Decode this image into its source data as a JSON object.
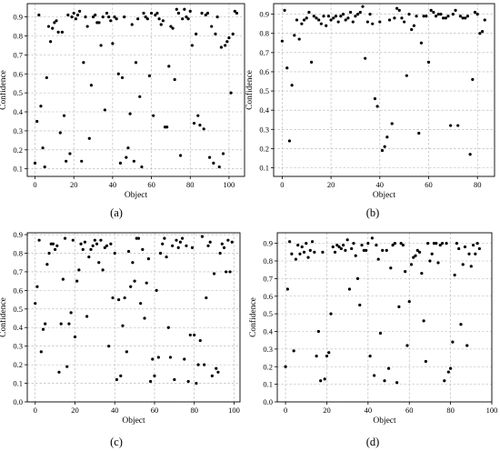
{
  "panels": [
    {
      "caption": "(a)"
    },
    {
      "caption": "(b)"
    },
    {
      "caption": "(c)"
    },
    {
      "caption": "(d)"
    }
  ],
  "colors": {
    "axis": "#000000",
    "grid": "#b0b0b0",
    "point": "#000000",
    "background": "#ffffff"
  },
  "chart_data": [
    {
      "type": "scatter",
      "title": "",
      "xlabel": "Object",
      "ylabel": "Confidence",
      "xlim": [
        -4,
        108
      ],
      "ylim": [
        0.06,
        0.97
      ],
      "xticks": [
        0,
        20,
        40,
        60,
        80,
        100
      ],
      "yticks": [
        0.1,
        0.2,
        0.3,
        0.4,
        0.5,
        0.6,
        0.7,
        0.8,
        0.9
      ],
      "grid": true,
      "x": [
        0,
        1,
        2,
        3,
        4,
        5,
        6,
        7,
        8,
        9,
        10,
        11,
        12,
        13,
        14,
        15,
        16,
        17,
        18,
        19,
        20,
        21,
        22,
        23,
        24,
        25,
        26,
        27,
        28,
        29,
        30,
        31,
        32,
        33,
        34,
        35,
        36,
        37,
        38,
        39,
        40,
        41,
        42,
        43,
        44,
        45,
        46,
        47,
        48,
        49,
        50,
        51,
        52,
        53,
        54,
        55,
        56,
        57,
        58,
        59,
        60,
        61,
        62,
        63,
        64,
        65,
        66,
        67,
        68,
        69,
        70,
        71,
        72,
        73,
        74,
        75,
        76,
        77,
        78,
        79,
        80,
        81,
        82,
        83,
        84,
        85,
        86,
        87,
        88,
        89,
        90,
        91,
        92,
        93,
        94,
        95,
        96,
        97,
        98,
        99,
        100,
        101,
        102,
        103,
        104
      ],
      "y": [
        0.13,
        0.35,
        0.91,
        0.43,
        0.21,
        0.11,
        0.58,
        0.85,
        0.77,
        0.84,
        0.87,
        0.88,
        0.82,
        0.29,
        0.82,
        0.38,
        0.14,
        0.91,
        0.18,
        0.9,
        0.92,
        0.89,
        0.91,
        0.93,
        0.14,
        0.66,
        0.9,
        0.85,
        0.26,
        0.54,
        0.9,
        0.91,
        0.87,
        0.87,
        0.75,
        0.9,
        0.41,
        0.92,
        0.9,
        0.88,
        0.76,
        0.9,
        0.89,
        0.6,
        0.13,
        0.58,
        0.9,
        0.16,
        0.21,
        0.39,
        0.86,
        0.14,
        0.66,
        0.89,
        0.48,
        0.11,
        0.92,
        0.9,
        0.89,
        0.59,
        0.92,
        0.38,
        0.91,
        0.92,
        0.89,
        0.86,
        0.88,
        0.32,
        0.32,
        0.64,
        0.85,
        0.84,
        0.57,
        0.94,
        0.92,
        0.17,
        0.89,
        0.94,
        0.9,
        0.89,
        0.93,
        0.75,
        0.34,
        0.81,
        0.38,
        0.33,
        0.92,
        0.31,
        0.91,
        0.92,
        0.16,
        0.85,
        0.13,
        0.81,
        0.9,
        0.11,
        0.74,
        0.18,
        0.75,
        0.77,
        0.79,
        0.5,
        0.81,
        0.93,
        0.92
      ]
    },
    {
      "type": "scatter",
      "title": "",
      "xlabel": "Object",
      "ylabel": "Confidence",
      "xlim": [
        -3.5,
        87
      ],
      "ylim": [
        0.055,
        0.955
      ],
      "xticks": [
        0,
        20,
        40,
        60,
        80
      ],
      "yticks": [
        0.1,
        0.2,
        0.3,
        0.4,
        0.5,
        0.6,
        0.7,
        0.8,
        0.9
      ],
      "grid": true,
      "x": [
        0,
        1,
        2,
        3,
        4,
        5,
        6,
        7,
        8,
        9,
        10,
        11,
        12,
        13,
        14,
        15,
        16,
        17,
        18,
        19,
        20,
        21,
        22,
        23,
        24,
        25,
        26,
        27,
        28,
        29,
        30,
        31,
        32,
        33,
        34,
        35,
        36,
        37,
        38,
        39,
        40,
        41,
        42,
        43,
        44,
        45,
        46,
        47,
        48,
        49,
        50,
        51,
        52,
        53,
        54,
        55,
        56,
        57,
        58,
        59,
        60,
        61,
        62,
        63,
        64,
        65,
        66,
        67,
        68,
        69,
        70,
        71,
        72,
        73,
        74,
        75,
        76,
        77,
        78,
        79,
        80,
        81,
        82,
        83
      ],
      "y": [
        0.76,
        0.92,
        0.62,
        0.24,
        0.53,
        0.79,
        0.87,
        0.77,
        0.85,
        0.87,
        0.88,
        0.91,
        0.65,
        0.89,
        0.88,
        0.87,
        0.85,
        0.89,
        0.84,
        0.89,
        0.87,
        0.88,
        0.89,
        0.86,
        0.89,
        0.9,
        0.87,
        0.88,
        0.91,
        0.86,
        0.89,
        0.9,
        0.91,
        0.94,
        0.67,
        0.86,
        0.9,
        0.85,
        0.46,
        0.42,
        0.86,
        0.19,
        0.21,
        0.26,
        0.87,
        0.33,
        0.88,
        0.93,
        0.92,
        0.88,
        0.86,
        0.58,
        0.9,
        0.82,
        0.84,
        0.89,
        0.28,
        0.75,
        0.89,
        0.89,
        0.65,
        0.92,
        0.91,
        0.89,
        0.9,
        0.9,
        0.88,
        0.88,
        0.89,
        0.32,
        0.9,
        0.92,
        0.32,
        0.89,
        0.88,
        0.88,
        0.89,
        0.17,
        0.56,
        0.91,
        0.9,
        0.8,
        0.81,
        0.87
      ]
    },
    {
      "type": "scatter",
      "title": "",
      "xlabel": "Object",
      "ylabel": "Confidence",
      "xlim": [
        -4,
        103
      ],
      "ylim": [
        0.0,
        0.91
      ],
      "xticks": [
        0,
        20,
        40,
        60,
        80,
        100
      ],
      "yticks": [
        0.0,
        0.1,
        0.2,
        0.3,
        0.4,
        0.5,
        0.6,
        0.7,
        0.8,
        0.9
      ],
      "grid": true,
      "x": [
        0,
        1,
        2,
        3,
        4,
        5,
        6,
        7,
        8,
        9,
        10,
        11,
        12,
        13,
        14,
        15,
        16,
        17,
        18,
        19,
        20,
        21,
        22,
        23,
        24,
        25,
        26,
        27,
        28,
        29,
        30,
        31,
        32,
        33,
        34,
        35,
        36,
        37,
        38,
        39,
        40,
        41,
        42,
        43,
        44,
        45,
        46,
        47,
        48,
        49,
        50,
        51,
        52,
        53,
        54,
        55,
        56,
        57,
        58,
        59,
        60,
        61,
        62,
        63,
        64,
        65,
        66,
        67,
        68,
        69,
        70,
        71,
        72,
        73,
        74,
        75,
        76,
        77,
        78,
        79,
        80,
        81,
        82,
        83,
        84,
        85,
        86,
        87,
        88,
        89,
        90,
        91,
        92,
        93,
        94,
        95,
        96,
        97,
        98,
        99
      ],
      "y": [
        0.53,
        0.62,
        0.87,
        0.27,
        0.39,
        0.42,
        0.74,
        0.8,
        0.85,
        0.85,
        0.82,
        0.84,
        0.16,
        0.42,
        0.66,
        0.88,
        0.19,
        0.42,
        0.48,
        0.87,
        0.35,
        0.65,
        0.71,
        0.85,
        0.82,
        0.86,
        0.46,
        0.78,
        0.82,
        0.84,
        0.87,
        0.85,
        0.75,
        0.87,
        0.71,
        0.83,
        0.84,
        0.3,
        0.85,
        0.56,
        0.8,
        0.12,
        0.55,
        0.14,
        0.41,
        0.56,
        0.27,
        0.81,
        0.62,
        0.75,
        0.65,
        0.88,
        0.88,
        0.53,
        0.82,
        0.45,
        0.64,
        0.77,
        0.11,
        0.23,
        0.14,
        0.6,
        0.24,
        0.8,
        0.85,
        0.88,
        0.78,
        0.4,
        0.24,
        0.84,
        0.12,
        0.87,
        0.83,
        0.86,
        0.88,
        0.23,
        0.84,
        0.11,
        0.36,
        0.83,
        0.36,
        0.1,
        0.2,
        0.33,
        0.89,
        0.2,
        0.56,
        0.84,
        0.86,
        0.14,
        0.69,
        0.18,
        0.16,
        0.8,
        0.85,
        0.83,
        0.7,
        0.87,
        0.7,
        0.86
      ]
    },
    {
      "type": "scatter",
      "title": "",
      "xlabel": "Object",
      "ylabel": "Confidence",
      "xlim": [
        -4,
        100
      ],
      "ylim": [
        0.0,
        0.96
      ],
      "xticks": [
        0,
        20,
        40,
        60,
        80,
        100
      ],
      "yticks": [
        0.0,
        0.1,
        0.2,
        0.3,
        0.4,
        0.5,
        0.6,
        0.7,
        0.8,
        0.9
      ],
      "grid": true,
      "x": [
        0,
        1,
        2,
        3,
        4,
        5,
        6,
        7,
        8,
        9,
        10,
        11,
        12,
        13,
        14,
        15,
        16,
        17,
        18,
        19,
        20,
        21,
        22,
        23,
        24,
        25,
        26,
        27,
        28,
        29,
        30,
        31,
        32,
        33,
        34,
        35,
        36,
        37,
        38,
        39,
        40,
        41,
        42,
        43,
        44,
        45,
        46,
        47,
        48,
        49,
        50,
        51,
        52,
        53,
        54,
        55,
        56,
        57,
        58,
        59,
        60,
        61,
        62,
        63,
        64,
        65,
        66,
        67,
        68,
        69,
        70,
        71,
        72,
        73,
        74,
        75,
        76,
        77,
        78,
        79,
        80,
        81,
        82,
        83,
        84,
        85,
        86,
        87,
        88,
        89,
        90,
        91,
        92,
        93,
        94
      ],
      "y": [
        0.2,
        0.64,
        0.91,
        0.84,
        0.29,
        0.81,
        0.89,
        0.84,
        0.88,
        0.85,
        0.9,
        0.82,
        0.86,
        0.91,
        0.85,
        0.26,
        0.4,
        0.12,
        0.85,
        0.13,
        0.26,
        0.28,
        0.5,
        0.88,
        0.85,
        0.89,
        0.88,
        0.87,
        0.89,
        0.86,
        0.92,
        0.64,
        0.87,
        0.9,
        0.83,
        0.7,
        0.55,
        0.89,
        0.86,
        0.86,
        0.9,
        0.26,
        0.93,
        0.15,
        0.89,
        0.81,
        0.39,
        0.86,
        0.12,
        0.86,
        0.19,
        0.76,
        0.89,
        0.9,
        0.11,
        0.54,
        0.9,
        0.89,
        0.74,
        0.32,
        0.57,
        0.78,
        0.82,
        0.83,
        0.86,
        0.85,
        0.73,
        0.46,
        0.23,
        0.9,
        0.8,
        0.84,
        0.9,
        0.9,
        0.79,
        0.89,
        0.9,
        0.12,
        0.9,
        0.17,
        0.19,
        0.34,
        0.72,
        0.9,
        0.87,
        0.44,
        0.78,
        0.88,
        0.32,
        0.84,
        0.77,
        0.89,
        0.84,
        0.9,
        0.87
      ]
    }
  ]
}
